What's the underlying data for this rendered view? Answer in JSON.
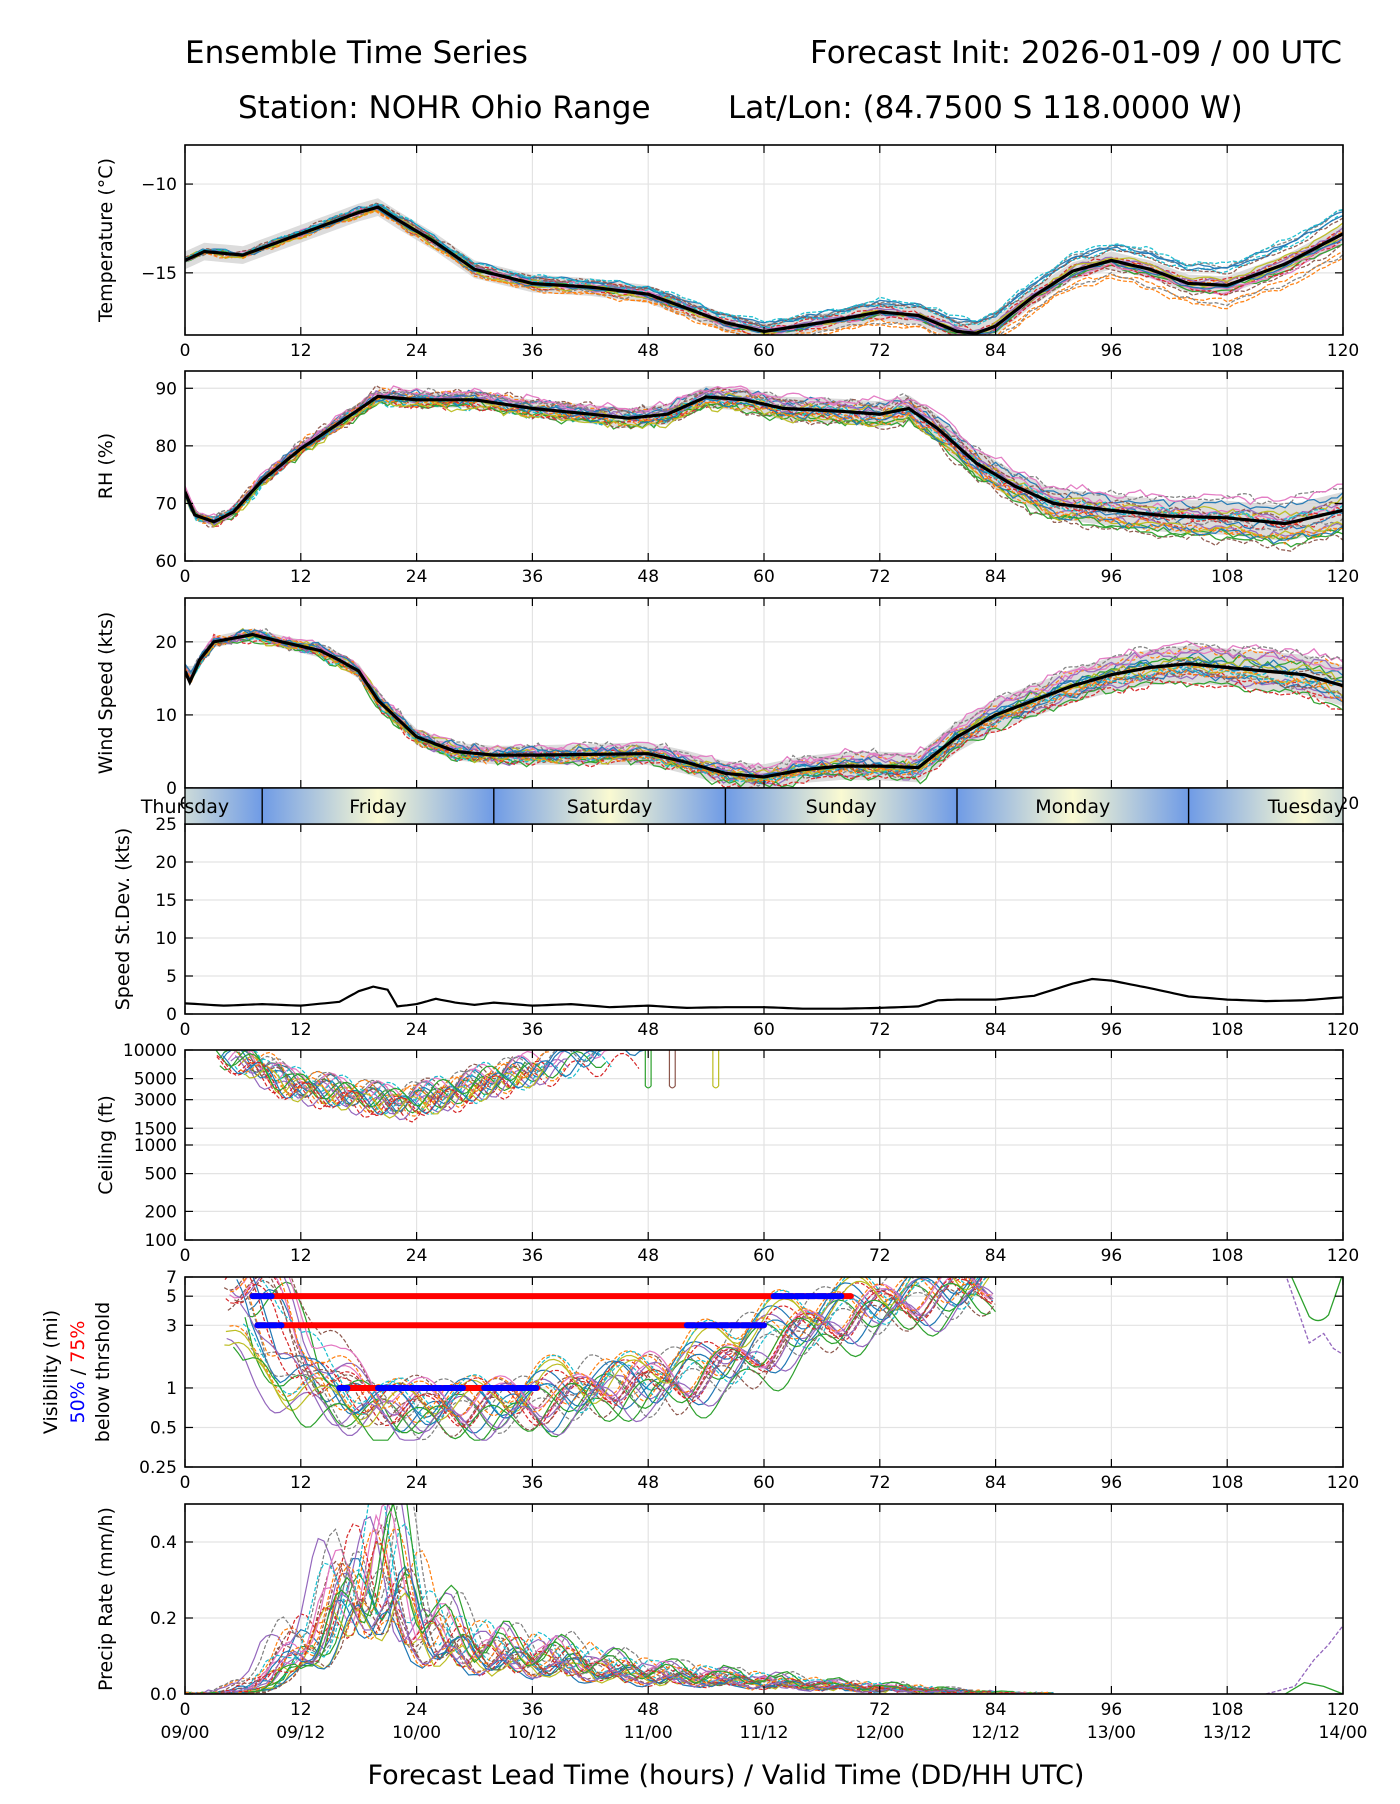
{
  "header": {
    "title_left": "Ensemble Time Series",
    "title_right": "Forecast Init: 2026-01-09 / 00 UTC",
    "station": "Station: NOHR Ohio Range",
    "latlon": "Lat/Lon: (84.7500 S 118.0000 W)"
  },
  "xaxis": {
    "label": "Forecast Lead Time (hours) / Valid Time (DD/HH UTC)",
    "range": [
      0,
      120
    ],
    "ticks": [
      0,
      12,
      24,
      36,
      48,
      60,
      72,
      84,
      96,
      108,
      120
    ],
    "tick_labels": [
      "0",
      "12",
      "24",
      "36",
      "48",
      "60",
      "72",
      "84",
      "96",
      "108",
      "120"
    ],
    "valid_labels": [
      "09/00",
      "09/12",
      "10/00",
      "10/12",
      "11/00",
      "11/12",
      "12/00",
      "12/12",
      "13/00",
      "13/12",
      "14/00"
    ]
  },
  "days": [
    {
      "label": "Thursday",
      "hour": 0
    },
    {
      "label": "Friday",
      "hour": 20
    },
    {
      "label": "Saturday",
      "hour": 44
    },
    {
      "label": "Sunday",
      "hour": 68
    },
    {
      "label": "Monday",
      "hour": 92
    },
    {
      "label": "Tuesday",
      "hour": 116
    }
  ],
  "day_boundaries": [
    8,
    32,
    56,
    80,
    104
  ],
  "colors": {
    "mean": "#000000",
    "spread": "#d3d3d3",
    "threshold_50": "#0000ff",
    "threshold_75": "#ff0000",
    "daybar_blue": "#6f9be6",
    "daybar_cream": "#fafad2",
    "members": [
      "#1f77b4",
      "#ff7f0e",
      "#2ca02c",
      "#d62728",
      "#9467bd",
      "#8c564b",
      "#e377c2",
      "#7f7f7f",
      "#bcbd22",
      "#17becf"
    ]
  },
  "chart_data": [
    {
      "type": "line",
      "name": "temperature",
      "ylabel": "Temperature (°C)",
      "ylim": [
        -18.5,
        -7.8
      ],
      "yticks": [
        -10,
        -15
      ],
      "ytick_labels": [
        "−10",
        "−15"
      ],
      "mean": {
        "x": [
          0,
          2,
          6,
          10,
          14,
          18,
          20,
          22,
          26,
          30,
          36,
          42,
          48,
          52,
          56,
          60,
          66,
          72,
          76,
          80,
          82,
          84,
          88,
          92,
          96,
          100,
          104,
          108,
          114,
          120
        ],
        "y": [
          -14.3,
          -13.8,
          -14.0,
          -13.2,
          -12.4,
          -11.6,
          -11.3,
          -12.0,
          -13.3,
          -14.8,
          -15.6,
          -15.8,
          -16.2,
          -17.0,
          -17.8,
          -18.3,
          -17.8,
          -17.2,
          -17.4,
          -18.3,
          -18.4,
          -18.0,
          -16.3,
          -14.9,
          -14.3,
          -14.8,
          -15.6,
          -15.7,
          -14.5,
          -12.8
        ]
      },
      "spread": 0.9
    },
    {
      "type": "line",
      "name": "rh",
      "ylabel": "RH (%)",
      "ylim": [
        60,
        93
      ],
      "yticks": [
        60,
        70,
        80,
        90
      ],
      "ytick_labels": [
        "60",
        "70",
        "80",
        "90"
      ],
      "mean": {
        "x": [
          0,
          1,
          3,
          5,
          8,
          12,
          16,
          20,
          24,
          30,
          36,
          42,
          46,
          50,
          54,
          58,
          62,
          68,
          72,
          75,
          78,
          82,
          86,
          90,
          96,
          102,
          108,
          114,
          120
        ],
        "y": [
          72,
          68,
          66.8,
          68.5,
          74,
          79.5,
          84,
          88.6,
          88,
          88,
          86.5,
          85.5,
          84.8,
          85.5,
          88.5,
          88,
          86.5,
          86,
          85.5,
          86.5,
          83,
          77,
          73,
          70,
          68.8,
          67.8,
          67.5,
          66.5,
          68.8
        ]
      },
      "spread": 2.5
    },
    {
      "type": "line",
      "name": "wind_speed",
      "ylabel": "Wind Speed (kts)",
      "ylim": [
        0,
        26
      ],
      "yticks": [
        0,
        10,
        20
      ],
      "ytick_labels": [
        "0",
        "10",
        "20"
      ],
      "mean": {
        "x": [
          0,
          0.5,
          1.5,
          3,
          5,
          7,
          10,
          14,
          16,
          18,
          20,
          24,
          28,
          32,
          36,
          42,
          48,
          52,
          56,
          60,
          64,
          68,
          72,
          76,
          80,
          84,
          88,
          92,
          96,
          100,
          104,
          108,
          112,
          116,
          120
        ],
        "y": [
          16,
          14.5,
          17.5,
          20,
          20.5,
          21,
          20,
          18.8,
          17.5,
          16,
          12,
          7,
          5,
          4.5,
          4.5,
          4.6,
          4.7,
          3.5,
          2,
          1.5,
          2.5,
          3,
          3,
          2.8,
          7,
          10,
          12,
          14,
          15.5,
          16.5,
          17,
          16.5,
          16,
          15.5,
          14
        ]
      },
      "spread": 1.8
    },
    {
      "type": "line",
      "name": "speed_stdev",
      "ylabel": "Speed St.Dev. (kts)",
      "ylim": [
        0,
        25
      ],
      "yticks": [
        0,
        5,
        10,
        15,
        20,
        25
      ],
      "ytick_labels": [
        "0",
        "5",
        "10",
        "15",
        "20",
        "25"
      ],
      "mean": {
        "x": [
          0,
          4,
          8,
          12,
          16,
          18,
          19.5,
          21,
          22,
          24,
          26,
          28,
          30,
          32,
          36,
          40,
          44,
          48,
          52,
          56,
          60,
          64,
          68,
          72,
          76,
          78,
          80,
          84,
          88,
          92,
          94,
          96,
          100,
          104,
          108,
          112,
          116,
          120
        ],
        "y": [
          1.4,
          1.1,
          1.3,
          1.1,
          1.6,
          3,
          3.6,
          3.2,
          1.0,
          1.3,
          2.0,
          1.5,
          1.2,
          1.5,
          1.1,
          1.3,
          0.9,
          1.1,
          0.8,
          0.9,
          0.9,
          0.7,
          0.7,
          0.8,
          1.0,
          1.8,
          1.9,
          1.9,
          2.4,
          4.0,
          4.6,
          4.4,
          3.4,
          2.3,
          1.9,
          1.7,
          1.8,
          2.2
        ]
      }
    },
    {
      "type": "line",
      "name": "ceiling",
      "ylabel": "Ceiling (ft)",
      "yscale": "log",
      "ylim": [
        100,
        10000
      ],
      "yticks": [
        10000,
        5000,
        3000,
        1500,
        1000,
        500,
        200,
        100
      ],
      "ytick_labels": [
        "10000",
        "5000",
        "3000",
        "1500",
        "1000",
        "500",
        "200",
        "100"
      ],
      "typical": {
        "x": [
          6,
          10,
          14,
          18,
          22,
          26,
          30,
          34,
          38,
          42,
          46
        ],
        "y": [
          8000,
          4500,
          3800,
          3200,
          2800,
          3200,
          4200,
          5500,
          7000,
          8500,
          9500
        ]
      },
      "blips_hours": [
        48,
        50.5,
        55
      ]
    },
    {
      "type": "line",
      "name": "visibility",
      "ylabel": "Visibility (mi)",
      "ylabel_50": "50%",
      "ylabel_sep": " / ",
      "ylabel_75": "75%",
      "ylabel_sub": "below thrshold",
      "yscale": "log",
      "ylim": [
        0.25,
        7
      ],
      "yticks": [
        7,
        5,
        3,
        1,
        0.5,
        0.25
      ],
      "ytick_labels": [
        "7",
        "5",
        "3",
        "1",
        "0.5",
        "0.25"
      ],
      "typical": {
        "x": [
          6,
          9,
          12,
          16,
          20,
          24,
          28,
          32,
          36,
          40,
          44,
          48,
          52,
          56,
          60,
          66,
          72,
          78,
          84
        ],
        "y": [
          6,
          2.2,
          1.2,
          0.85,
          0.7,
          0.65,
          0.7,
          0.75,
          0.7,
          0.9,
          1.1,
          0.95,
          1.2,
          1.5,
          2.2,
          3.2,
          4.2,
          5.0,
          6.5
        ]
      },
      "thresholds": [
        {
          "level": 5,
          "p75": [
            7,
            69
          ],
          "p50_segments": [
            [
              7,
              9
            ],
            [
              61,
              68
            ]
          ]
        },
        {
          "level": 3,
          "p75": [
            7.5,
            60
          ],
          "p50_segments": [
            [
              7.5,
              10
            ],
            [
              52,
              60
            ]
          ]
        },
        {
          "level": 1,
          "p75": [
            16,
            36.5
          ],
          "p50_segments": [
            [
              16,
              17
            ],
            [
              20,
              29
            ],
            [
              31,
              36.5
            ]
          ]
        }
      ]
    },
    {
      "type": "line",
      "name": "precip_rate",
      "ylabel": "Precip Rate (mm/h)",
      "ylim": [
        0,
        0.5
      ],
      "yticks": [
        0.0,
        0.2,
        0.4
      ],
      "ytick_labels": [
        "0.0",
        "0.2",
        "0.4"
      ],
      "typical": {
        "x": [
          0,
          4,
          6,
          9,
          12,
          15,
          18,
          20,
          22,
          24,
          28,
          32,
          36,
          40,
          44,
          48,
          54,
          60,
          66,
          72,
          78,
          84
        ],
        "y": [
          0,
          0,
          0.01,
          0.05,
          0.12,
          0.2,
          0.28,
          0.33,
          0.25,
          0.17,
          0.12,
          0.1,
          0.09,
          0.08,
          0.06,
          0.05,
          0.04,
          0.03,
          0.02,
          0.015,
          0.008,
          0
        ]
      }
    }
  ]
}
